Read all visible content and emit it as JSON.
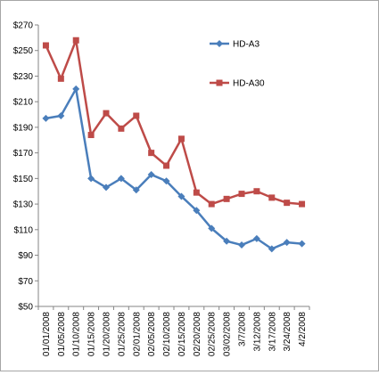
{
  "chart_data": {
    "type": "line",
    "title": "",
    "xlabel": "",
    "ylabel": "",
    "categories": [
      "01/01/2008",
      "01/05/2008",
      "01/10/2008",
      "01/15/2008",
      "01/20/2008",
      "01/25/2008",
      "02/01/2008",
      "02/05/2008",
      "02/10/2008",
      "02/15/2008",
      "02/20/2008",
      "02/25/2008",
      "03/02/2008",
      "3/7/2008",
      "3/12/2008",
      "3/17/2008",
      "3/24/2008",
      "4/2/2008"
    ],
    "ylim": [
      50,
      270
    ],
    "yticks": [
      50,
      70,
      90,
      110,
      130,
      150,
      170,
      190,
      210,
      230,
      250,
      270
    ],
    "ytick_labels": [
      "$50",
      "$70",
      "$90",
      "$110",
      "$130",
      "$150",
      "$170",
      "$190",
      "$210",
      "$230",
      "$250",
      "$270"
    ],
    "grid": false,
    "legend_position": "right",
    "series": [
      {
        "name": "HD-A3",
        "color": "#4a7ebb",
        "marker": "diamond",
        "values": [
          197,
          199,
          220,
          150,
          143,
          150,
          141,
          153,
          148,
          136,
          125,
          111,
          101,
          98,
          103,
          95,
          100,
          99
        ]
      },
      {
        "name": "HD-A30",
        "color": "#be4b48",
        "marker": "square",
        "values": [
          254,
          228,
          258,
          184,
          201,
          189,
          199,
          170,
          160,
          181,
          139,
          130,
          134,
          138,
          140,
          135,
          131,
          130
        ]
      }
    ]
  }
}
